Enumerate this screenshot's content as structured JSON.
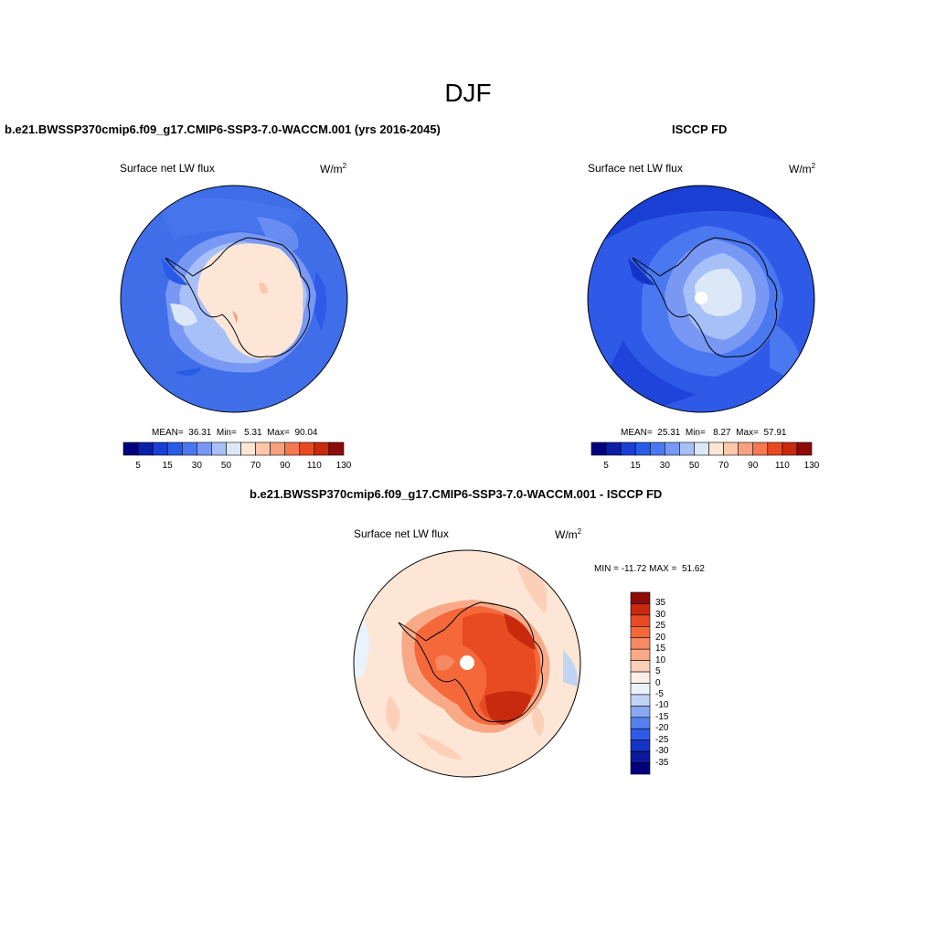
{
  "figure": {
    "season": "DJF",
    "variable": "Surface net LW flux",
    "units_base": "W/m",
    "units_exp": "2"
  },
  "panels": [
    {
      "title": "b.e21.BWSSP370cmip6.f09_g17.CMIP6-SSP3-7.0-WACCM.001 (yrs 2016-2045)",
      "stats": "MEAN=  36.31  Min=   5.31  Max=  90.04",
      "colorbar_labels": [
        "5",
        "15",
        "30",
        "50",
        "70",
        "90",
        "110",
        "130"
      ]
    },
    {
      "title": "ISCCP FD",
      "stats": "MEAN=  25.31  Min=   8.27  Max=  57.91",
      "colorbar_labels": [
        "5",
        "15",
        "30",
        "50",
        "70",
        "90",
        "110",
        "130"
      ]
    },
    {
      "title": "b.e21.BWSSP370cmip6.f09_g17.CMIP6-SSP3-7.0-WACCM.001 - ISCCP FD",
      "stats": "MIN = -11.72 MAX =  51.62",
      "colorbar_labels": [
        "35",
        "30",
        "25",
        "20",
        "15",
        "10",
        "5",
        "0",
        "-5",
        "-10",
        "-15",
        "-20",
        "-25",
        "-30",
        "-35"
      ]
    }
  ],
  "colors": {
    "abs_scale": [
      "#00007f",
      "#0a1fa8",
      "#1a3fd4",
      "#2a5ae8",
      "#4a78f0",
      "#7898f4",
      "#a8c0f8",
      "#dce8f8",
      "#fde6d6",
      "#fbc8ac",
      "#f8a080",
      "#f47850",
      "#e84a22",
      "#c82a0e",
      "#8e0a06"
    ],
    "diff_scale": [
      "#8e0a06",
      "#c82a0e",
      "#e84a22",
      "#f4683a",
      "#f68a62",
      "#f8aa88",
      "#fcd0b8",
      "#fdeee4",
      "#eaf2fc",
      "#c0d4f4",
      "#88a8f0",
      "#5580ee",
      "#2f5ae8",
      "#1434c8",
      "#0a1a9a",
      "#00007f"
    ]
  }
}
